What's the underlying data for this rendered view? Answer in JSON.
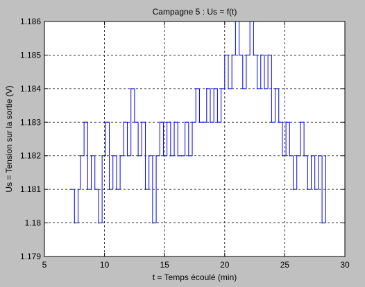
{
  "chart_data": {
    "type": "line",
    "title": "Campagne 5 : Us = f(t)",
    "xlabel": "t = Temps écoulé (min)",
    "ylabel": "Us = Tension sur la sortie (V)",
    "xlim": [
      5,
      30
    ],
    "ylim": [
      1.179,
      1.186
    ],
    "xticks": [
      5,
      10,
      15,
      20,
      25,
      30
    ],
    "xtick_labels": [
      "5",
      "10",
      "15",
      "20",
      "25",
      "30"
    ],
    "yticks": [
      1.179,
      1.18,
      1.181,
      1.182,
      1.183,
      1.184,
      1.185,
      1.186
    ],
    "ytick_labels": [
      "1.179",
      "1.18",
      "1.181",
      "1.182",
      "1.183",
      "1.184",
      "1.185",
      "1.186"
    ],
    "grid": true,
    "colors": {
      "line": "#0000ff",
      "figure_bg": "#c0c0c0",
      "axes_bg": "#ffffff"
    },
    "series": [
      {
        "x": [
          7.2,
          7.5,
          7.8,
          8.0,
          8.3,
          8.6,
          8.9,
          9.2,
          9.5,
          9.8,
          10.1,
          10.4,
          10.7,
          11.0,
          11.3,
          11.6,
          11.9,
          12.2,
          12.5,
          12.8,
          13.1,
          13.4,
          13.7,
          14.0,
          14.3,
          14.6,
          14.9,
          15.2,
          15.5,
          15.8,
          16.1,
          16.4,
          16.7,
          17.0,
          17.3,
          17.6,
          17.9,
          18.2,
          18.5,
          18.8,
          19.1,
          19.4,
          19.7,
          20.0,
          20.3,
          20.6,
          20.9,
          21.2,
          21.5,
          21.8,
          22.1,
          22.4,
          22.7,
          23.0,
          23.3,
          23.6,
          23.9,
          24.2,
          24.5,
          24.8,
          25.1,
          25.4,
          25.7,
          26.0,
          26.3,
          26.6,
          26.9,
          27.2,
          27.5,
          27.8,
          28.1,
          28.4
        ],
        "y": [
          1.181,
          1.18,
          1.181,
          1.182,
          1.183,
          1.181,
          1.182,
          1.181,
          1.18,
          1.182,
          1.183,
          1.181,
          1.182,
          1.181,
          1.182,
          1.183,
          1.182,
          1.184,
          1.183,
          1.182,
          1.183,
          1.181,
          1.182,
          1.18,
          1.182,
          1.183,
          1.182,
          1.183,
          1.182,
          1.183,
          1.182,
          1.182,
          1.183,
          1.182,
          1.183,
          1.184,
          1.183,
          1.183,
          1.184,
          1.183,
          1.184,
          1.183,
          1.184,
          1.185,
          1.184,
          1.185,
          1.186,
          1.185,
          1.184,
          1.185,
          1.186,
          1.185,
          1.184,
          1.185,
          1.184,
          1.185,
          1.183,
          1.184,
          1.183,
          1.182,
          1.183,
          1.182,
          1.181,
          1.182,
          1.183,
          1.182,
          1.181,
          1.182,
          1.181,
          1.182,
          1.18,
          1.182
        ]
      }
    ]
  }
}
